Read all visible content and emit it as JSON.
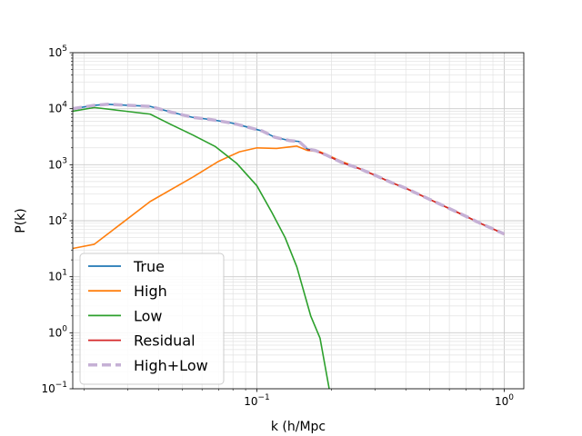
{
  "chart_data": {
    "type": "line",
    "title": "",
    "xlabel": "k (h/Mpc",
    "ylabel": "P(k)",
    "xscale": "log",
    "yscale": "log",
    "xlim": [
      0.018,
      1.2
    ],
    "ylim": [
      0.1,
      100000
    ],
    "grid": "both major and minor",
    "legend_placement": "lower-left",
    "x_ticks": [
      {
        "value": 0.1,
        "base": "10",
        "exp": "−1"
      },
      {
        "value": 1,
        "base": "10",
        "exp": "0"
      }
    ],
    "y_ticks": [
      {
        "value": 0.1,
        "base": "10",
        "exp": "−1"
      },
      {
        "value": 1,
        "base": "10",
        "exp": "0"
      },
      {
        "value": 10,
        "base": "10",
        "exp": "1"
      },
      {
        "value": 100,
        "base": "10",
        "exp": "2"
      },
      {
        "value": 1000,
        "base": "10",
        "exp": "3"
      },
      {
        "value": 10000,
        "base": "10",
        "exp": "4"
      },
      {
        "value": 100000,
        "base": "10",
        "exp": "5"
      }
    ],
    "series": [
      {
        "name": "True",
        "color": "#1f77b4",
        "dash": "solid",
        "width": 1.6,
        "x": [
          0.018,
          0.022,
          0.025,
          0.03,
          0.037,
          0.045,
          0.055,
          0.065,
          0.08,
          0.095,
          0.105,
          0.118,
          0.135,
          0.148,
          0.16,
          0.172,
          0.19,
          0.22,
          0.26,
          0.3,
          0.35,
          0.4,
          0.5,
          0.6,
          0.7,
          0.8,
          1.0
        ],
        "y": [
          10000,
          11500,
          12000,
          11500,
          11000,
          8700,
          7000,
          6400,
          5500,
          4500,
          4000,
          3100,
          2700,
          2600,
          1900,
          1800,
          1500,
          1100,
          850,
          650,
          480,
          380,
          240,
          165,
          120,
          90,
          58
        ]
      },
      {
        "name": "High",
        "color": "#ff7f0e",
        "dash": "solid",
        "width": 1.6,
        "x": [
          0.018,
          0.022,
          0.037,
          0.055,
          0.07,
          0.085,
          0.1,
          0.12,
          0.145,
          0.16,
          0.18,
          0.22,
          0.26,
          0.3,
          0.35,
          0.4,
          0.5,
          0.6,
          0.7,
          0.8,
          1.0
        ],
        "y": [
          32,
          38,
          220,
          600,
          1150,
          1700,
          2000,
          1950,
          2150,
          1800,
          1700,
          1150,
          850,
          650,
          480,
          380,
          240,
          165,
          120,
          90,
          58
        ]
      },
      {
        "name": "Low",
        "color": "#2ca02c",
        "dash": "solid",
        "width": 1.6,
        "x": [
          0.018,
          0.022,
          0.037,
          0.045,
          0.055,
          0.068,
          0.083,
          0.1,
          0.115,
          0.13,
          0.145,
          0.165,
          0.18,
          0.196
        ],
        "y": [
          9000,
          10500,
          8000,
          5200,
          3400,
          2100,
          1050,
          420,
          140,
          50,
          15,
          2,
          0.8,
          0.1
        ]
      },
      {
        "name": "Residual",
        "color": "#d62728",
        "dash": "solid",
        "width": 1.6,
        "x": [
          0.16,
          0.172,
          0.19,
          0.22,
          0.26,
          0.3,
          0.35,
          0.4,
          0.5,
          0.6,
          0.7,
          0.8,
          1.0
        ],
        "y": [
          1850,
          1780,
          1500,
          1100,
          850,
          650,
          480,
          380,
          240,
          165,
          120,
          90,
          58
        ]
      },
      {
        "name": "High+Low",
        "color": "#c5b0d5",
        "dash": "dashed",
        "width": 3.5,
        "x": [
          0.018,
          0.022,
          0.025,
          0.03,
          0.037,
          0.045,
          0.055,
          0.065,
          0.08,
          0.095,
          0.105,
          0.118,
          0.135,
          0.148,
          0.16,
          0.172,
          0.19,
          0.22,
          0.26,
          0.3,
          0.35,
          0.4,
          0.5,
          0.6,
          0.7,
          0.8,
          1.0
        ],
        "y": [
          10000,
          11500,
          12000,
          11500,
          11000,
          8700,
          7000,
          6400,
          5500,
          4500,
          4000,
          3100,
          2700,
          2600,
          1900,
          1800,
          1500,
          1100,
          850,
          650,
          480,
          380,
          240,
          165,
          120,
          90,
          58
        ]
      }
    ]
  }
}
